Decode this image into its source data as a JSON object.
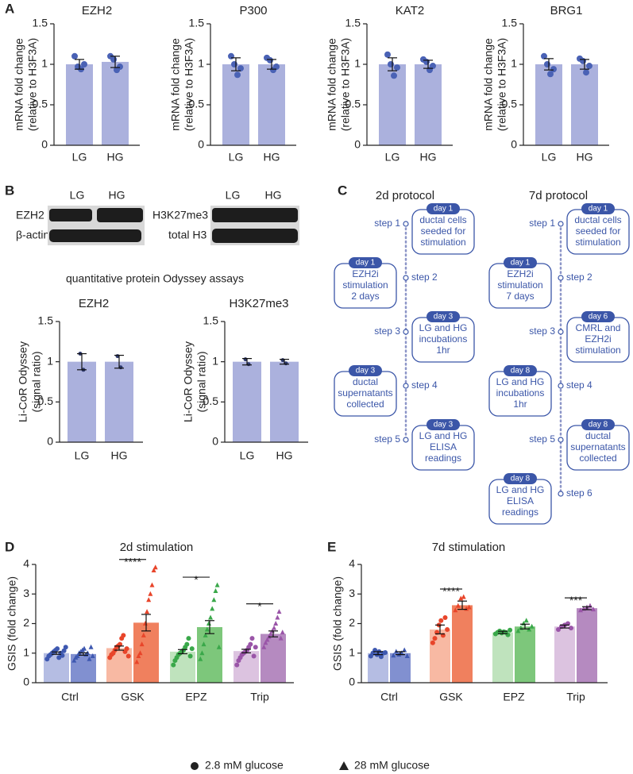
{
  "panel_labels": [
    "A",
    "B",
    "C",
    "D",
    "E"
  ],
  "blots": [
    {
      "lanes": [
        "LG",
        "HG"
      ],
      "rows": [
        "EZH2",
        "β-actin"
      ]
    },
    {
      "lanes": [
        "LG",
        "HG"
      ],
      "rows": [
        "H3K27me3",
        "total H3"
      ]
    }
  ],
  "odyssey_title": "quantitative protein Odyssey assays",
  "protocols": [
    {
      "title": "2d protocol",
      "steps": [
        "step 1",
        "step 2",
        "step 3",
        "step 4",
        "step 5"
      ],
      "boxes": [
        {
          "day": "day 1",
          "lines": [
            "ductal cells",
            "seeded for",
            "stimulation"
          ]
        },
        {
          "day": "day 1",
          "lines": [
            "EZH2i",
            "stimulation",
            "2 days"
          ]
        },
        {
          "day": "day 3",
          "lines": [
            "LG and HG",
            "incubations",
            "1hr"
          ]
        },
        {
          "day": "day 3",
          "lines": [
            "ductal",
            "supernatants",
            "collected"
          ]
        },
        {
          "day": "day 3",
          "lines": [
            "LG and HG",
            "ELISA",
            "readings"
          ]
        }
      ]
    },
    {
      "title": "7d protocol",
      "steps": [
        "step 1",
        "step 2",
        "step 3",
        "step 4",
        "step 5",
        "step 6"
      ],
      "boxes": [
        {
          "day": "day 1",
          "lines": [
            "ductal cells",
            "seeded for",
            "stimulation"
          ]
        },
        {
          "day": "day 1",
          "lines": [
            "EZH2i",
            "stimulation",
            "7 days"
          ]
        },
        {
          "day": "day 6",
          "lines": [
            "CMRL and",
            "EZH2i",
            "stimulation"
          ]
        },
        {
          "day": "day 8",
          "lines": [
            "LG and HG",
            "incubations",
            "1hr"
          ]
        },
        {
          "day": "day 8",
          "lines": [
            "ductal",
            "supernatants",
            "collected"
          ]
        },
        {
          "day": "day 8",
          "lines": [
            "LG and HG",
            "ELISA",
            "readings"
          ]
        }
      ]
    }
  ],
  "chart_data": [
    {
      "type": "bar",
      "title": "EZH2",
      "ylabel": [
        "mRNA fold change",
        "(relative to H3F3A)"
      ],
      "categories": [
        "LG",
        "HG"
      ],
      "values": [
        1.0,
        1.03
      ],
      "errors": [
        0.06,
        0.07
      ],
      "points": [
        [
          1.1,
          0.97,
          0.94,
          1.0
        ],
        [
          1.1,
          1.06,
          0.93,
          0.97
        ]
      ],
      "color": "#abb1dd",
      "point_color": "#4a62b5",
      "ylim": [
        0,
        1.5
      ],
      "yticks": [
        0,
        0.5,
        1,
        1.5
      ]
    },
    {
      "type": "bar",
      "title": "P300",
      "ylabel": [
        "mRNA fold change",
        "(relative to H3F3A)"
      ],
      "categories": [
        "LG",
        "HG"
      ],
      "values": [
        1.0,
        1.0
      ],
      "errors": [
        0.08,
        0.06
      ],
      "points": [
        [
          1.1,
          1.0,
          0.87,
          0.95
        ],
        [
          1.08,
          1.05,
          0.93,
          0.97
        ]
      ],
      "color": "#abb1dd",
      "point_color": "#4a62b5",
      "ylim": [
        0,
        1.5
      ],
      "yticks": [
        0,
        0.5,
        1,
        1.5
      ]
    },
    {
      "type": "bar",
      "title": "KAT2",
      "ylabel": [
        "mRNA fold change",
        "(relative to H3F3A)"
      ],
      "categories": [
        "LG",
        "HG"
      ],
      "values": [
        1.0,
        1.0
      ],
      "errors": [
        0.08,
        0.05
      ],
      "points": [
        [
          1.12,
          1.0,
          0.86,
          0.96
        ],
        [
          1.06,
          1.03,
          0.93,
          0.98
        ]
      ],
      "color": "#abb1dd",
      "point_color": "#4a62b5",
      "ylim": [
        0,
        1.5
      ],
      "yticks": [
        0,
        0.5,
        1,
        1.5
      ]
    },
    {
      "type": "bar",
      "title": "BRG1",
      "ylabel": [
        "mRNA fold change",
        "(relative to H3F3A)"
      ],
      "categories": [
        "LG",
        "HG"
      ],
      "values": [
        1.0,
        1.0
      ],
      "errors": [
        0.07,
        0.06
      ],
      "points": [
        [
          1.1,
          1.0,
          0.88,
          0.94
        ],
        [
          1.07,
          1.04,
          0.9,
          0.98
        ]
      ],
      "color": "#abb1dd",
      "point_color": "#4a62b5",
      "ylim": [
        0,
        1.5
      ],
      "yticks": [
        0,
        0.5,
        1,
        1.5
      ]
    },
    {
      "type": "bar",
      "title": "EZH2",
      "ylabel": [
        "Li-CoR Odyssey",
        "(signal ratio)"
      ],
      "categories": [
        "LG",
        "HG"
      ],
      "values": [
        1.0,
        1.0
      ],
      "errors": [
        0.1,
        0.08
      ],
      "points": [
        [
          1.1,
          0.9
        ],
        [
          1.07,
          0.93
        ]
      ],
      "color": "#abb1dd",
      "point_color": "#2f3a6e",
      "ylim": [
        0,
        1.5
      ],
      "yticks": [
        0,
        0.5,
        1,
        1.5
      ]
    },
    {
      "type": "bar",
      "title": "H3K27me3",
      "ylabel": [
        "Li-CoR Odyssey",
        "(signal ratio)"
      ],
      "categories": [
        "LG",
        "HG"
      ],
      "values": [
        1.0,
        1.0
      ],
      "errors": [
        0.04,
        0.03
      ],
      "points": [
        [
          1.03,
          0.97
        ],
        [
          1.02,
          0.98
        ]
      ],
      "color": "#abb1dd",
      "point_color": "#2f3a6e",
      "ylim": [
        0,
        1.5
      ],
      "yticks": [
        0,
        0.5,
        1,
        1.5
      ]
    },
    {
      "type": "grouped_bar",
      "title": "2d stimulation",
      "ylabel": [
        "GSIS (fold change)"
      ],
      "categories": [
        "Ctrl",
        "GSK",
        "EPZ",
        "Trip"
      ],
      "ylim": [
        0,
        4
      ],
      "yticks": [
        0,
        1,
        2,
        3,
        4
      ],
      "significance": [
        null,
        "****",
        "*",
        "*"
      ],
      "series": [
        {
          "name": "2.8 mM glucose",
          "marker": "circle",
          "colors": [
            "#b5bde3",
            "#f8b9a3",
            "#bfe3bd",
            "#dcc3e0"
          ],
          "point_colors": [
            "#3e58b0",
            "#e8452a",
            "#3aa84a",
            "#9a55a8"
          ],
          "values": [
            1.0,
            1.17,
            1.05,
            1.07
          ],
          "errors": [
            0.04,
            0.07,
            0.07,
            0.06
          ],
          "points": [
            [
              0.8,
              0.9,
              0.95,
              1.0,
              1.05,
              1.1,
              1.15,
              0.85,
              1.0,
              0.92,
              1.08,
              1.2
            ],
            [
              0.85,
              0.95,
              1.0,
              1.1,
              1.2,
              1.25,
              1.3,
              1.5,
              1.6,
              1.05,
              1.15,
              0.9
            ],
            [
              0.6,
              0.75,
              0.85,
              0.95,
              1.0,
              1.05,
              1.1,
              1.2,
              1.3,
              1.5,
              0.9,
              1.15
            ],
            [
              0.6,
              0.75,
              0.85,
              0.95,
              1.0,
              1.05,
              1.1,
              1.2,
              1.3,
              1.5,
              0.9,
              1.2
            ]
          ]
        },
        {
          "name": "28 mM glucose",
          "marker": "triangle",
          "colors": [
            "#8190d0",
            "#f0805e",
            "#7dc77b",
            "#b58ac0"
          ],
          "point_colors": [
            "#3e58b0",
            "#e8452a",
            "#3aa84a",
            "#9a55a8"
          ],
          "values": [
            0.97,
            2.03,
            1.88,
            1.65
          ],
          "errors": [
            0.04,
            0.28,
            0.22,
            0.1
          ],
          "points": [
            [
              0.75,
              0.85,
              0.9,
              1.0,
              1.05,
              1.1,
              1.15,
              0.95,
              1.0,
              0.8,
              1.2,
              0.9
            ],
            [
              0.7,
              0.9,
              1.0,
              1.3,
              1.6,
              2.0,
              2.4,
              2.8,
              3.0,
              3.3,
              3.8,
              3.9
            ],
            [
              0.8,
              1.0,
              1.3,
              1.6,
              1.8,
              2.0,
              2.2,
              2.5,
              2.8,
              3.1,
              3.3,
              1.2
            ],
            [
              1.2,
              1.35,
              1.45,
              1.55,
              1.65,
              1.75,
              1.85,
              2.0,
              2.2,
              2.4,
              1.5,
              1.7
            ]
          ]
        }
      ]
    },
    {
      "type": "grouped_bar",
      "title": "7d stimulation",
      "ylabel": [
        "GSIS (fold change)"
      ],
      "categories": [
        "Ctrl",
        "GSK",
        "EPZ",
        "Trip"
      ],
      "ylim": [
        0,
        4
      ],
      "yticks": [
        0,
        1,
        2,
        3,
        4
      ],
      "significance": [
        null,
        "****",
        null,
        "***"
      ],
      "series": [
        {
          "name": "2.8 mM glucose",
          "marker": "circle",
          "colors": [
            "#b5bde3",
            "#f8b9a3",
            "#bfe3bd",
            "#dcc3e0"
          ],
          "point_colors": [
            "#3e58b0",
            "#e8452a",
            "#3aa84a",
            "#9a55a8"
          ],
          "values": [
            1.0,
            1.8,
            1.7,
            1.9
          ],
          "errors": [
            0.05,
            0.15,
            0.04,
            0.05
          ],
          "points": [
            [
              0.9,
              1.0,
              1.1,
              0.95,
              1.05,
              0.88,
              1.0,
              1.02
            ],
            [
              1.35,
              1.5,
              1.7,
              1.95,
              2.1,
              1.6,
              2.2,
              1.8
            ],
            [
              1.65,
              1.7,
              1.75,
              1.68,
              1.72,
              1.7,
              1.62,
              1.78
            ],
            [
              1.8,
              1.9,
              1.95,
              2.0,
              1.85
            ]
          ]
        },
        {
          "name": "28 mM glucose",
          "marker": "triangle",
          "colors": [
            "#8190d0",
            "#f0805e",
            "#7dc77b",
            "#b58ac0"
          ],
          "point_colors": [
            "#3e58b0",
            "#e8452a",
            "#3aa84a",
            "#9a55a8"
          ],
          "values": [
            1.0,
            2.62,
            1.9,
            2.52
          ],
          "errors": [
            0.05,
            0.14,
            0.08,
            0.05
          ],
          "points": [
            [
              0.92,
              1.05,
              0.95,
              1.0,
              1.1,
              0.9
            ],
            [
              2.45,
              2.6,
              2.85,
              2.9,
              2.5,
              2.55
            ],
            [
              1.75,
              1.85,
              2.0,
              2.1,
              1.8,
              1.9
            ],
            [
              2.45,
              2.5,
              2.55,
              2.6,
              2.48
            ]
          ]
        }
      ]
    }
  ]
}
